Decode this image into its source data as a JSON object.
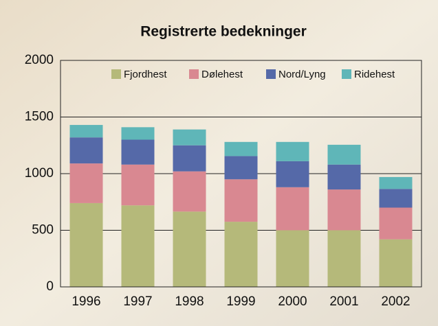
{
  "chart_data": {
    "type": "bar",
    "stacked": true,
    "title": "Registrerte bedekninger",
    "categories": [
      "1996",
      "1997",
      "1998",
      "1999",
      "2000",
      "2001",
      "2002"
    ],
    "series": [
      {
        "name": "Fjordhest",
        "color": "#b5b97a",
        "values": [
          740,
          720,
          665,
          575,
          500,
          500,
          420
        ]
      },
      {
        "name": "Dølehest",
        "color": "#d98891",
        "values": [
          350,
          360,
          355,
          375,
          380,
          360,
          280
        ]
      },
      {
        "name": "Nord/Lyng",
        "color": "#5569a8",
        "values": [
          230,
          220,
          230,
          205,
          230,
          220,
          165
        ]
      },
      {
        "name": "Ridehest",
        "color": "#5fb6b8",
        "values": [
          110,
          110,
          140,
          125,
          170,
          175,
          105
        ]
      }
    ],
    "ylim": [
      0,
      2000
    ],
    "yticks": [
      0,
      500,
      1000,
      1500,
      2000
    ],
    "grid": true
  }
}
